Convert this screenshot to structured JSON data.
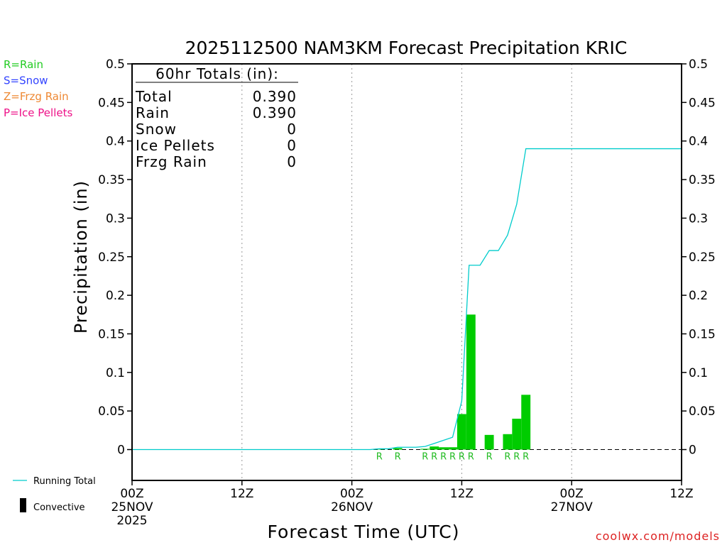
{
  "chart_data": {
    "type": "bar",
    "title": "2025112500 NAM3KM Forecast Precipitation KRIC",
    "xlabel": "Forecast Time (UTC)",
    "ylabel": "Precipitation (in)",
    "ylim": [
      -0.04,
      0.5
    ],
    "xlim_hours": [
      0,
      60
    ],
    "y_ticks": [
      0,
      0.05,
      0.1,
      0.15,
      0.2,
      0.25,
      0.3,
      0.35,
      0.4,
      0.45,
      0.5
    ],
    "y_tick_labels": [
      "0",
      "0.05",
      "0.1",
      "0.15",
      "0.2",
      "0.25",
      "0.3",
      "0.35",
      "0.4",
      "0.45",
      "0.5"
    ],
    "x_ticks": [
      {
        "hour": 0,
        "lines": [
          "00Z",
          "25NOV",
          "2025"
        ]
      },
      {
        "hour": 12,
        "lines": [
          "12Z"
        ]
      },
      {
        "hour": 24,
        "lines": [
          "00Z",
          "26NOV"
        ]
      },
      {
        "hour": 36,
        "lines": [
          "12Z"
        ]
      },
      {
        "hour": 48,
        "lines": [
          "00Z",
          "27NOV"
        ]
      },
      {
        "hour": 60,
        "lines": [
          "12Z"
        ]
      }
    ],
    "grid_hours": [
      12,
      24,
      36,
      48
    ],
    "hourly_bars": [
      {
        "hour": 27,
        "value": 0.001,
        "type": "R"
      },
      {
        "hour": 29,
        "value": 0.002,
        "type": "R"
      },
      {
        "hour": 32,
        "value": 0.001,
        "type": "R"
      },
      {
        "hour": 33,
        "value": 0.004,
        "type": "R"
      },
      {
        "hour": 34,
        "value": 0.003,
        "type": "R"
      },
      {
        "hour": 35,
        "value": 0.003,
        "type": "R"
      },
      {
        "hour": 36,
        "value": 0.046,
        "type": "R"
      },
      {
        "hour": 37,
        "value": 0.175,
        "type": "R"
      },
      {
        "hour": 39,
        "value": 0.019,
        "type": "R"
      },
      {
        "hour": 41,
        "value": 0.02,
        "type": "R"
      },
      {
        "hour": 42,
        "value": 0.04,
        "type": "R"
      },
      {
        "hour": 43,
        "value": 0.071,
        "type": "R"
      }
    ],
    "running_total": {
      "name": "Running Total",
      "hours": [
        0,
        26,
        27,
        28,
        29,
        30,
        31,
        32,
        33,
        34,
        35,
        36,
        36.8,
        37.5,
        38,
        39,
        40,
        41,
        42,
        43,
        43.5,
        44,
        48,
        60
      ],
      "values": [
        0,
        0,
        0.001,
        0.001,
        0.003,
        0.003,
        0.003,
        0.004,
        0.008,
        0.012,
        0.016,
        0.063,
        0.239,
        0.239,
        0.239,
        0.258,
        0.258,
        0.278,
        0.318,
        0.39,
        0.39,
        0.39,
        0.39,
        0.39
      ]
    },
    "totals_panel": {
      "heading": "60hr Totals (in):",
      "rows": [
        {
          "label": "Total",
          "value": "0.390"
        },
        {
          "label": "Rain",
          "value": "0.390"
        },
        {
          "label": "Snow",
          "value": "0"
        },
        {
          "label": "Ice Pellets",
          "value": "0"
        },
        {
          "label": "Frzg Rain",
          "value": "0"
        }
      ]
    },
    "type_legend": [
      {
        "text": "R=Rain",
        "color": "#22cc22"
      },
      {
        "text": "S=Snow",
        "color": "#3344ff"
      },
      {
        "text": "Z=Frzg Rain",
        "color": "#ee8833"
      },
      {
        "text": "P=Ice Pellets",
        "color": "#ee1188"
      }
    ],
    "series_legend": {
      "running_total": "Running Total",
      "convective": "Convective"
    },
    "source": "coolwx.com/models",
    "colors": {
      "bar": "#00cc00",
      "line": "#00cccc",
      "rain_letter": "#22bb22",
      "source": "#dd2222",
      "grid": "#999999"
    }
  }
}
